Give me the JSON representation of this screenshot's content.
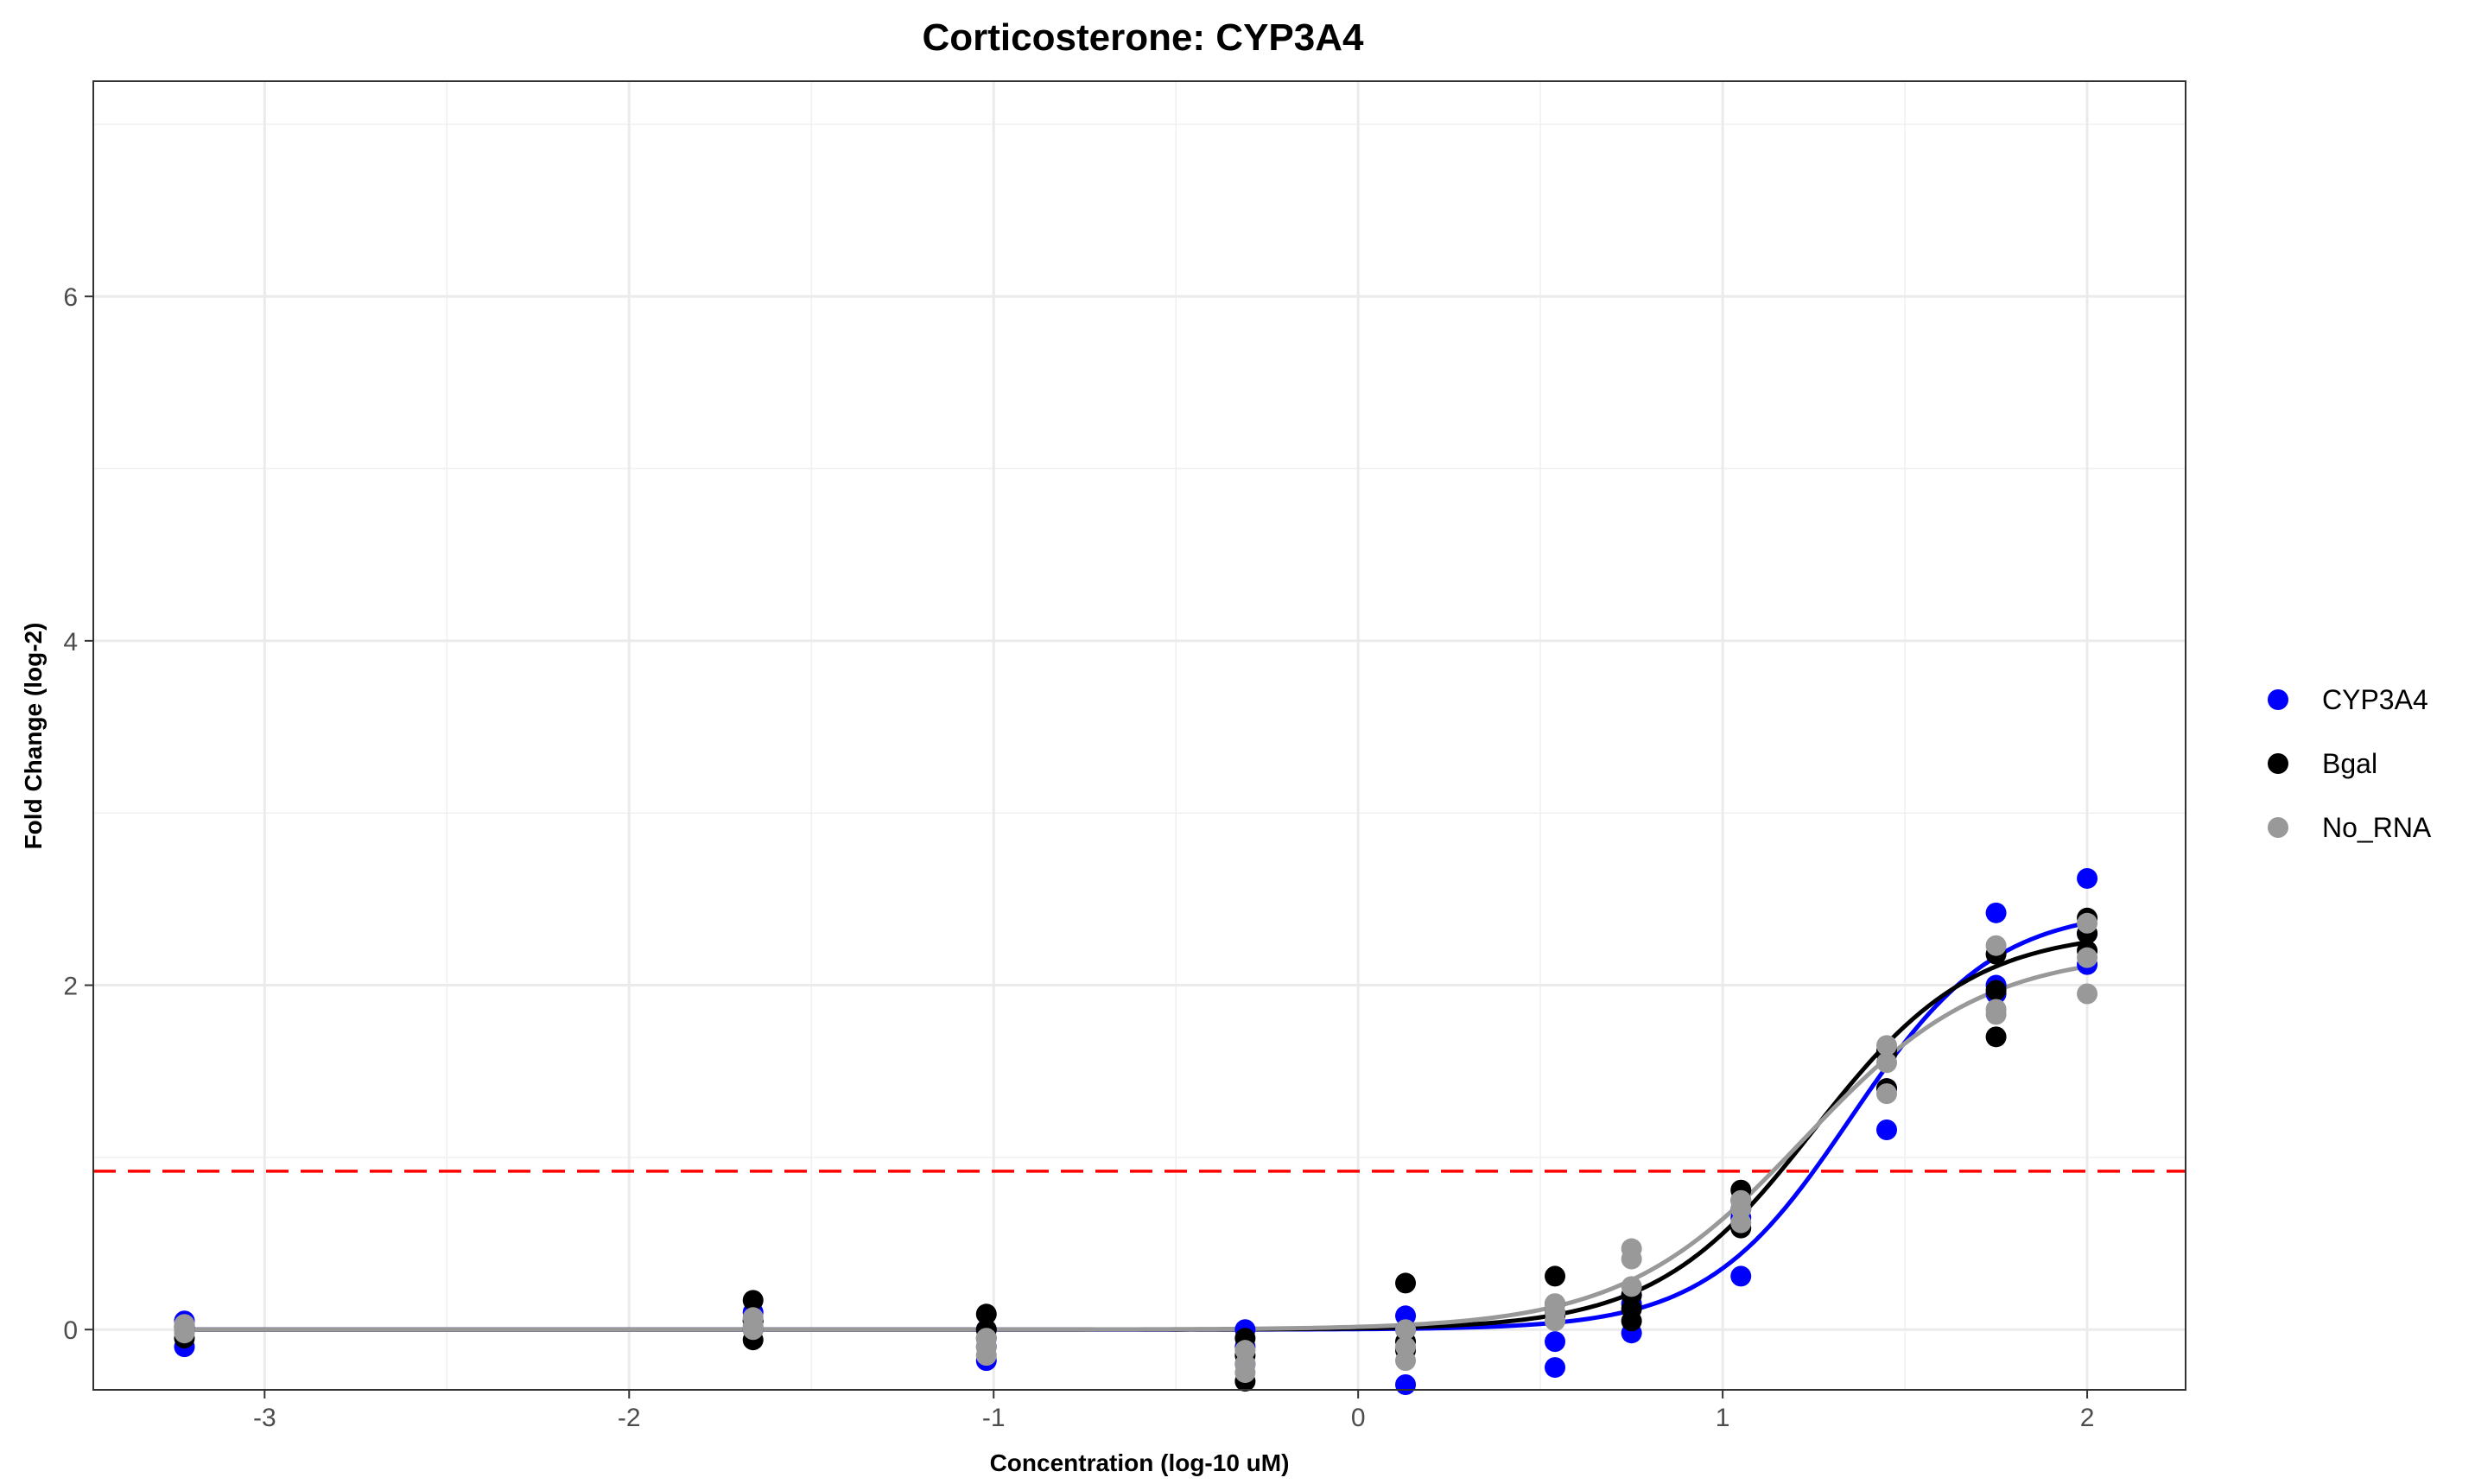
{
  "chart_data": {
    "type": "scatter",
    "title": "Corticosterone: CYP3A4",
    "xlabel": "Concentration (log-10 uM)",
    "ylabel": "Fold Change (log-2)",
    "xlim": [
      -3.47,
      2.27
    ],
    "ylim": [
      -0.35,
      7.25
    ],
    "x_ticks": [
      -3,
      -2,
      -1,
      0,
      1,
      2
    ],
    "y_ticks": [
      0,
      2,
      4,
      6
    ],
    "grid": true,
    "legend_position": "right",
    "threshold": {
      "y": 0.92,
      "color": "#ff0000",
      "style": "dashed"
    },
    "series": [
      {
        "name": "CYP3A4",
        "color": "#0000ff",
        "points": [
          [
            -3.22,
            0.05
          ],
          [
            -3.22,
            -0.1
          ],
          [
            -3.22,
            0.0
          ],
          [
            -1.66,
            0.1
          ],
          [
            -1.66,
            0.0
          ],
          [
            -1.66,
            0.05
          ],
          [
            -1.02,
            -0.18
          ],
          [
            -1.02,
            -0.1
          ],
          [
            -1.02,
            0.0
          ],
          [
            -0.31,
            0.0
          ],
          [
            -0.31,
            -0.1
          ],
          [
            -0.31,
            -0.2
          ],
          [
            0.13,
            0.08
          ],
          [
            0.13,
            0.0
          ],
          [
            0.13,
            -0.32
          ],
          [
            0.54,
            -0.22
          ],
          [
            0.54,
            -0.07
          ],
          [
            0.54,
            0.1
          ],
          [
            0.75,
            -0.02
          ],
          [
            0.75,
            0.15
          ],
          [
            0.75,
            0.2
          ],
          [
            1.05,
            0.31
          ],
          [
            1.05,
            0.65
          ],
          [
            1.05,
            0.7
          ],
          [
            1.45,
            1.16
          ],
          [
            1.45,
            1.4
          ],
          [
            1.45,
            1.6
          ],
          [
            1.75,
            2.42
          ],
          [
            1.75,
            2.0
          ],
          [
            1.75,
            1.95
          ],
          [
            2.0,
            2.62
          ],
          [
            2.0,
            2.12
          ],
          [
            2.0,
            2.3
          ]
        ],
        "curve": {
          "bottom": 0.0,
          "top": 2.45,
          "ec50": 1.35,
          "hill": 2.2
        }
      },
      {
        "name": "Bgal",
        "color": "#000000",
        "points": [
          [
            -3.22,
            -0.05
          ],
          [
            -3.22,
            0.0
          ],
          [
            -3.22,
            0.02
          ],
          [
            -1.66,
            0.17
          ],
          [
            -1.66,
            -0.06
          ],
          [
            -1.66,
            0.05
          ],
          [
            -1.02,
            0.09
          ],
          [
            -1.02,
            0.0
          ],
          [
            -1.02,
            -0.05
          ],
          [
            -0.31,
            -0.3
          ],
          [
            -0.31,
            -0.15
          ],
          [
            -0.31,
            -0.05
          ],
          [
            0.13,
            0.27
          ],
          [
            0.13,
            -0.07
          ],
          [
            0.13,
            -0.12
          ],
          [
            0.54,
            0.31
          ],
          [
            0.54,
            0.15
          ],
          [
            0.54,
            0.08
          ],
          [
            0.75,
            0.05
          ],
          [
            0.75,
            0.12
          ],
          [
            0.75,
            0.2
          ],
          [
            1.05,
            0.81
          ],
          [
            1.05,
            0.75
          ],
          [
            1.05,
            0.59
          ],
          [
            1.45,
            1.62
          ],
          [
            1.45,
            1.6
          ],
          [
            1.45,
            1.4
          ],
          [
            1.75,
            2.18
          ],
          [
            1.75,
            1.97
          ],
          [
            1.75,
            1.7
          ],
          [
            2.0,
            2.39
          ],
          [
            2.0,
            2.2
          ],
          [
            2.0,
            2.3
          ]
        ],
        "curve": {
          "bottom": 0.0,
          "top": 2.32,
          "ec50": 1.25,
          "hill": 2.0
        }
      },
      {
        "name": "No_RNA",
        "color": "#999999",
        "points": [
          [
            -3.22,
            0.03
          ],
          [
            -3.22,
            0.0
          ],
          [
            -3.22,
            -0.02
          ],
          [
            -1.66,
            0.07
          ],
          [
            -1.66,
            0.02
          ],
          [
            -1.66,
            0.0
          ],
          [
            -1.02,
            -0.1
          ],
          [
            -1.02,
            -0.05
          ],
          [
            -1.02,
            -0.15
          ],
          [
            -0.31,
            -0.2
          ],
          [
            -0.31,
            -0.12
          ],
          [
            -0.31,
            -0.25
          ],
          [
            0.13,
            -0.18
          ],
          [
            0.13,
            -0.1
          ],
          [
            0.13,
            0.0
          ],
          [
            0.54,
            0.05
          ],
          [
            0.54,
            0.1
          ],
          [
            0.54,
            0.15
          ],
          [
            0.75,
            0.47
          ],
          [
            0.75,
            0.41
          ],
          [
            0.75,
            0.25
          ],
          [
            1.05,
            0.7
          ],
          [
            1.05,
            0.62
          ],
          [
            1.05,
            0.75
          ],
          [
            1.45,
            1.65
          ],
          [
            1.45,
            1.37
          ],
          [
            1.45,
            1.55
          ],
          [
            1.75,
            2.23
          ],
          [
            1.75,
            1.86
          ],
          [
            1.75,
            1.83
          ],
          [
            2.0,
            2.36
          ],
          [
            2.0,
            2.16
          ],
          [
            2.0,
            1.95
          ]
        ],
        "curve": {
          "bottom": 0.0,
          "top": 2.2,
          "ec50": 1.22,
          "hill": 1.75
        }
      }
    ]
  }
}
